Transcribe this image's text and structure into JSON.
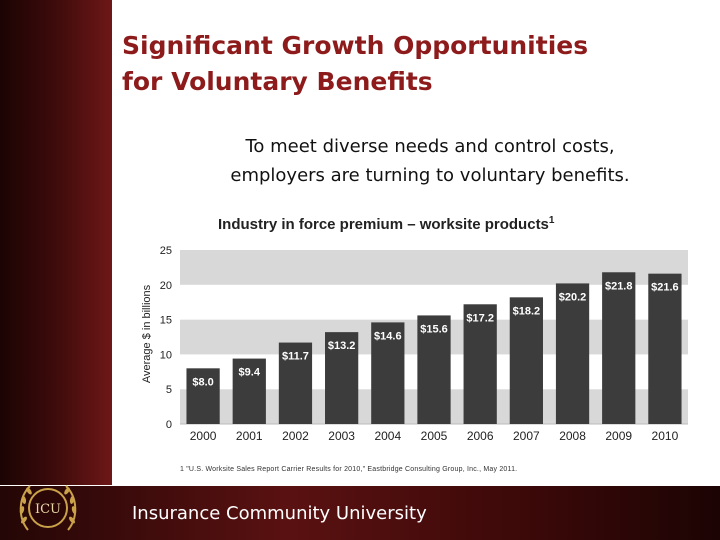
{
  "slide": {
    "title_lines": [
      "Significant Growth Opportunities",
      "for Voluntary Benefits"
    ],
    "subtitle_lines": [
      "To meet diverse needs and control costs,",
      "employers are turning to voluntary benefits."
    ],
    "footnote": "1 \"U.S. Worksite Sales Report Carrier Results for 2010,\" Eastbridge Consulting Group, Inc., May 2011.",
    "footer_text": "Insurance Community University",
    "logo_text": "ICU"
  },
  "colors": {
    "title": "#8e1b1b",
    "bar": "#3c3c3c",
    "band_gray": "#d8d8d8",
    "band_white": "#ffffff",
    "footer": "#4a0e0e"
  },
  "chart_data": {
    "type": "bar",
    "title": "Industry in force premium – worksite products",
    "title_superscript": "1",
    "ylabel": "Average $ in billions",
    "xlabel": "",
    "ylim": [
      0,
      25
    ],
    "yticks": [
      0,
      5,
      10,
      15,
      20,
      25
    ],
    "categories": [
      "2000",
      "2001",
      "2002",
      "2003",
      "2004",
      "2005",
      "2006",
      "2007",
      "2008",
      "2009",
      "2010"
    ],
    "values": [
      8.0,
      9.4,
      11.7,
      13.2,
      14.6,
      15.6,
      17.2,
      18.2,
      20.2,
      21.8,
      21.6
    ],
    "data_labels": [
      "$8.0",
      "$9.4",
      "$11.7",
      "$13.2",
      "$14.6",
      "$15.6",
      "$17.2",
      "$18.2",
      "$20.2",
      "$21.8",
      "$21.6"
    ],
    "grid": "alternating bands",
    "legend": "none"
  }
}
